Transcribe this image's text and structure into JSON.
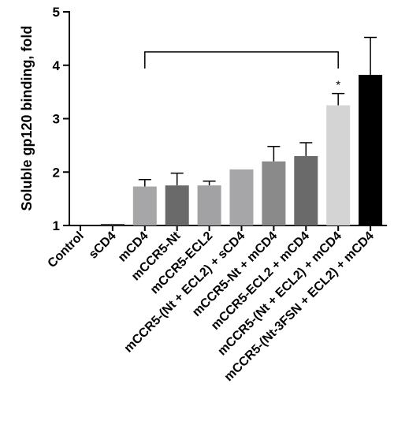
{
  "chart_data": {
    "type": "bar",
    "title": "",
    "xlabel": "",
    "ylabel": "Soluble gp120 binding, fold",
    "ylim": [
      1,
      5
    ],
    "yticks": [
      1,
      2,
      3,
      4,
      5
    ],
    "grid": false,
    "categories": [
      "Control",
      "sCD4",
      "mCD4",
      "mCCR5-Nt",
      "mCCR5-ECL2",
      "mCCR5-(Nt + ECL2) + sCD4",
      "mCCR5-Nt + mCD4",
      "mCCR5-ECL2 + mCD4",
      "mCCR5-(Nt + ECL2) + mCD4",
      "mCCR5-(Nt-3FSN + ECL2) + mCD4"
    ],
    "values": [
      1.0,
      1.03,
      1.73,
      1.75,
      1.75,
      2.05,
      2.2,
      2.3,
      3.25,
      3.82
    ],
    "errors": [
      0,
      0,
      0.13,
      0.23,
      0.08,
      0,
      0.28,
      0.25,
      0.22,
      0.7
    ],
    "colors": [
      "#ffffff",
      "#444444",
      "#a6a6a8",
      "#6a6a6a",
      "#a2a2a4",
      "#a6a6a8",
      "#8a8a8a",
      "#6a6a6a",
      "#d4d4d4",
      "#000000"
    ],
    "significance": {
      "from_category": "mCD4",
      "to_category": "mCCR5-(Nt + ECL2) + mCD4",
      "bracket_y": 4.25,
      "marker": "*"
    }
  }
}
